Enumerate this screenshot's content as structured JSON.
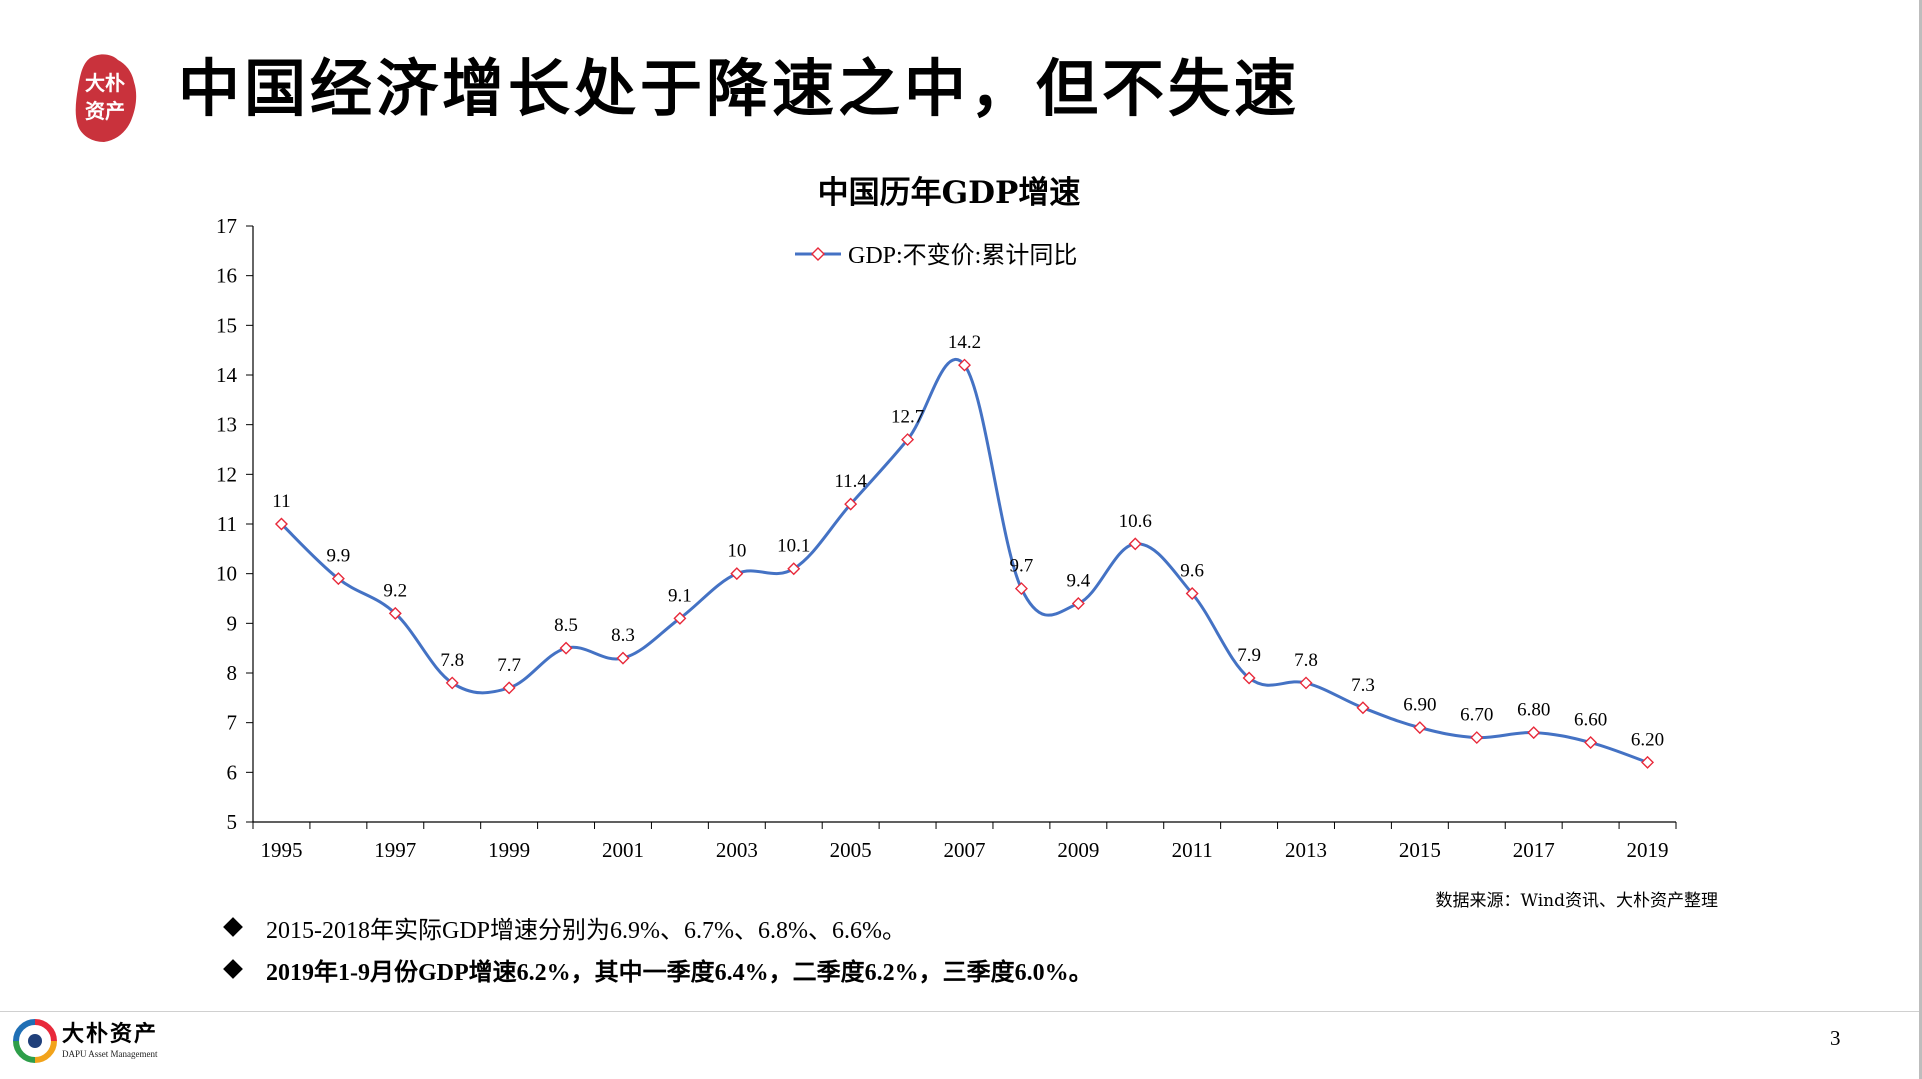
{
  "slide": {
    "title": "中国经济增长处于降速之中，但不失速",
    "logo_text": [
      "大朴",
      "资产"
    ],
    "page_number": "3"
  },
  "chart_data": {
    "type": "line",
    "title": "中国历年GDP增速",
    "xlabel": "",
    "ylabel": "",
    "legend_position": "top-center",
    "x": [
      1995,
      1996,
      1997,
      1998,
      1999,
      2000,
      2001,
      2002,
      2003,
      2004,
      2005,
      2006,
      2007,
      2008,
      2009,
      2010,
      2011,
      2012,
      2013,
      2014,
      2015,
      2016,
      2017,
      2018,
      2019
    ],
    "x_tick_labels": [
      "1995",
      "1997",
      "1999",
      "2001",
      "2003",
      "2005",
      "2007",
      "2009",
      "2011",
      "2013",
      "2015",
      "2017",
      "2019"
    ],
    "y_ticks": [
      5,
      6,
      7,
      8,
      9,
      10,
      11,
      12,
      13,
      14,
      15,
      16,
      17
    ],
    "ylim": [
      5,
      17
    ],
    "grid": false,
    "series": [
      {
        "name": "GDP:不变价:累计同比",
        "values": [
          11,
          9.9,
          9.2,
          7.8,
          7.7,
          8.5,
          8.3,
          9.1,
          10,
          10.1,
          11.4,
          12.7,
          14.2,
          9.7,
          9.4,
          10.6,
          9.6,
          7.9,
          7.8,
          7.3,
          6.9,
          6.7,
          6.8,
          6.6,
          6.2
        ],
        "data_labels": [
          "11",
          "9.9",
          "9.2",
          "7.8",
          "7.7",
          "8.5",
          "8.3",
          "9.1",
          "10",
          "10.1",
          "11.4",
          "12.7",
          "14.2",
          "9.7",
          "9.4",
          "10.6",
          "9.6",
          "7.9",
          "7.8",
          "7.3",
          "6.90",
          "6.70",
          "6.80",
          "6.60",
          "6.20"
        ],
        "line_color": "#4472c4",
        "marker_color": "#e8293a",
        "marker": "diamond"
      }
    ]
  },
  "source_note": "数据来源：Wind资讯、大朴资产整理",
  "bullets": [
    {
      "text": "2015-2018年实际GDP增速分别为6.9%、6.7%、6.8%、6.6%。",
      "bold": false
    },
    {
      "text": "2019年1-9月份GDP增速6.2%，其中一季度6.4%，二季度6.2%，三季度6.0%。",
      "bold": true
    }
  ],
  "footer": {
    "brand_cn": "大朴资产",
    "brand_en": "DAPU Asset Management"
  },
  "colors": {
    "line": "#4472c4",
    "marker": "#e8293a",
    "logo_red": "#c9323c"
  }
}
